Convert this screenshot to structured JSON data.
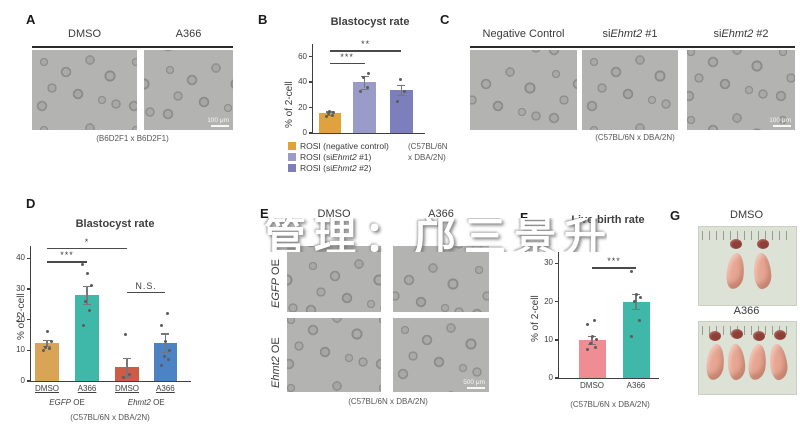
{
  "watermark": {
    "text": "管理：邝三景升"
  },
  "panels": {
    "A": {
      "label": "A",
      "columns": [
        "DMSO",
        "A366"
      ],
      "caption": "(B6D2F1 x B6D2F1)",
      "scale_bar": "100 μm"
    },
    "B": {
      "label": "B"
    },
    "C": {
      "label": "C",
      "columns_rich": [
        [
          {
            "t": "Negative Control"
          }
        ],
        [
          {
            "t": "si"
          },
          {
            "t": "Ehmt2",
            "i": true
          },
          {
            "t": " #1"
          }
        ],
        [
          {
            "t": "si"
          },
          {
            "t": "Ehmt2",
            "i": true
          },
          {
            "t": " #2"
          }
        ]
      ],
      "caption": "(C57BL/6N x DBA/2N)",
      "scale_bar": "100 μm"
    },
    "D": {
      "label": "D"
    },
    "E": {
      "label": "E",
      "columns": [
        "DMSO",
        "A366"
      ],
      "rows_rich": [
        [
          {
            "t": "EGFP",
            "i": true
          },
          {
            "t": " OE"
          }
        ],
        [
          {
            "t": "Ehmt2",
            "i": true
          },
          {
            "t": " OE"
          }
        ]
      ],
      "caption": "(C57BL/6N x DBA/2N)",
      "scale_bar": "500 μm"
    },
    "F": {
      "label": "F"
    },
    "G": {
      "label": "G",
      "photos": [
        {
          "label": "DMSO",
          "pup_count": 2
        },
        {
          "label": "A366",
          "pup_count": 4
        }
      ]
    }
  },
  "chart_data": [
    {
      "type": "bar",
      "panel": "B",
      "title": "Blastocyst rate",
      "ylabel": "% of 2-cell",
      "ylim": [
        0,
        60
      ],
      "yticks": [
        0,
        20,
        40,
        60
      ],
      "ymax_draw": 70,
      "grid": false,
      "legend_position": "bottom-left",
      "bar_x": [
        0.15,
        0.46,
        0.79
      ],
      "bar_w": 0.2,
      "bars": [
        {
          "legend_segments": [
            {
              "t": "ROSI (negative control)"
            }
          ],
          "value": 15.5,
          "err": 1.5,
          "color": "#dfa23f",
          "dots": [
            13,
            14,
            15,
            16,
            17
          ]
        },
        {
          "legend_segments": [
            {
              "t": "ROSI (si"
            },
            {
              "t": "Ehmt2",
              "i": true
            },
            {
              "t": " #1)"
            }
          ],
          "value": 40,
          "err": 5,
          "color": "#999bc9",
          "dots": [
            33,
            36,
            44,
            47
          ]
        },
        {
          "legend_segments": [
            {
              "t": "ROSI (si"
            },
            {
              "t": "Ehmt2",
              "i": true
            },
            {
              "t": " #2)"
            }
          ],
          "value": 34,
          "err": 4,
          "color": "#7d7fbc",
          "dots": [
            25,
            33,
            42
          ]
        }
      ],
      "sig": [
        {
          "from": 0,
          "to": 1,
          "label": "***",
          "y": 55
        },
        {
          "from": 0,
          "to": 2,
          "label": "**",
          "y": 65
        }
      ],
      "note_lines": [
        "(C57BL/6N",
        "x DBA/2N)"
      ]
    },
    {
      "type": "bar",
      "panel": "D",
      "title": "Blastocyst rate",
      "ylabel": "% of 2-cell",
      "ylim": [
        0,
        40
      ],
      "yticks": [
        0,
        10,
        20,
        30,
        40
      ],
      "ymax_draw": 44,
      "grid": false,
      "xlabel_underline": true,
      "bar_x": [
        0.1,
        0.35,
        0.6,
        0.84
      ],
      "bar_w": 0.145,
      "bars": [
        {
          "x": "DMSO",
          "value": 12.5,
          "err": 1,
          "color": "#d9a455",
          "dots": [
            10,
            10.5,
            11,
            13,
            16
          ]
        },
        {
          "x": "A366",
          "value": 28,
          "err": 3,
          "color": "#3fb8a9",
          "dots": [
            18,
            23,
            26,
            31,
            35,
            38
          ]
        },
        {
          "x": "DMSO",
          "value": 4.5,
          "err": 3,
          "color": "#cf5b47",
          "dots": [
            1,
            2,
            15
          ]
        },
        {
          "x": "A366",
          "value": 12.5,
          "err": 3,
          "color": "#4d82c4",
          "dots": [
            5,
            7,
            8,
            10,
            13,
            18,
            22
          ]
        }
      ],
      "groups": [
        {
          "segments": [
            {
              "t": "EGFP",
              "i": true
            },
            {
              "t": " OE"
            }
          ],
          "bars": [
            0,
            1
          ]
        },
        {
          "segments": [
            {
              "t": "Ehmt2",
              "i": true
            },
            {
              "t": " OE"
            }
          ],
          "bars": [
            2,
            3
          ]
        }
      ],
      "sig": [
        {
          "from": 0,
          "to": 1,
          "label": "***",
          "y": 39
        },
        {
          "from": 0,
          "to": 2,
          "label": "*",
          "y": 43.5
        },
        {
          "from": 2,
          "to": 3,
          "label": "N.S.",
          "y": 29
        }
      ],
      "caption": "(C57BL/6N x DBA/2N)"
    },
    {
      "type": "bar",
      "panel": "F",
      "title": "Live-birth rate",
      "ylabel": "% of 2-cell",
      "ylim": [
        0,
        30
      ],
      "yticks": [
        0,
        10,
        20,
        30
      ],
      "ymax_draw": 33,
      "grid": false,
      "bar_x": [
        0.33,
        0.77
      ],
      "bar_w": 0.27,
      "bars": [
        {
          "x": "DMSO",
          "value": 10,
          "err": 1,
          "color": "#ef8d93",
          "dots": [
            7.5,
            8,
            9,
            10,
            11,
            14,
            15
          ]
        },
        {
          "x": "A366",
          "value": 20,
          "err": 2,
          "color": "#3fb8a9",
          "dots": [
            11,
            15,
            20,
            21,
            22,
            28
          ]
        }
      ],
      "sig": [
        {
          "from": 0,
          "to": 1,
          "label": "***",
          "y": 29
        }
      ],
      "caption": "(C57BL/6N x DBA/2N)"
    }
  ]
}
